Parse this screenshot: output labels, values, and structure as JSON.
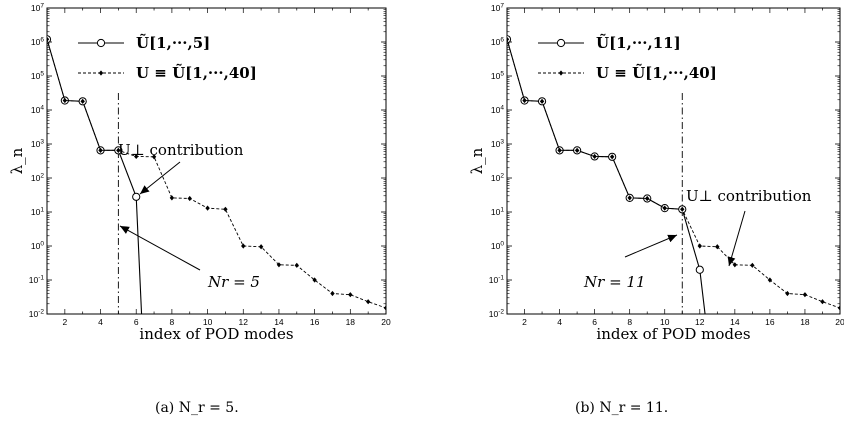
{
  "chart_data": [
    {
      "type": "line",
      "caption": "(a) N_r = 5.",
      "xlabel": "index of POD modes",
      "ylabel": "λ_n",
      "xlim": [
        1,
        20
      ],
      "ylim_log10": [
        -2,
        7
      ],
      "yscale": "log",
      "x_ticks": [
        "2",
        "4",
        "6",
        "8",
        "10",
        "12",
        "14",
        "16",
        "18",
        "20"
      ],
      "y_ticks": [
        "10-2",
        "10-1",
        "100",
        "101",
        "102",
        "103",
        "104",
        "105",
        "106",
        "107"
      ],
      "legend": [
        "Ũ[1,···,5]",
        "U ≡ Ũ[1,···,40]"
      ],
      "legend_placement": "top-right",
      "nr": 5,
      "series": [
        {
          "name": "Ũ[1,···,5]",
          "style": "solid-circle",
          "x": [
            1,
            2,
            3,
            4,
            5,
            6,
            6.3
          ],
          "y": [
            1200000,
            19000,
            18000,
            650,
            650,
            28,
            0.01
          ]
        },
        {
          "name": "U ≡ Ũ[1,···,40]",
          "style": "dashed-diamond",
          "x": [
            1,
            2,
            3,
            4,
            5,
            6,
            7,
            8,
            9,
            10,
            11,
            12,
            13,
            14,
            15,
            16,
            17,
            18,
            19,
            20
          ],
          "y": [
            1200000,
            19000,
            18000,
            650,
            650,
            430,
            420,
            26,
            25,
            13,
            12,
            1.0,
            0.95,
            0.28,
            0.27,
            0.1,
            0.04,
            0.037,
            0.023,
            0.015
          ]
        }
      ],
      "annotations": {
        "contribution": "U⊥ contribution",
        "nr_label": "Nr = 5"
      }
    },
    {
      "type": "line",
      "caption": "(b) N_r = 11.",
      "xlabel": "index of POD modes",
      "ylabel": "λ_n",
      "xlim": [
        1,
        20
      ],
      "ylim_log10": [
        -2,
        7
      ],
      "yscale": "log",
      "x_ticks": [
        "2",
        "4",
        "6",
        "8",
        "10",
        "12",
        "14",
        "16",
        "18",
        "20"
      ],
      "y_ticks": [
        "10-2",
        "10-1",
        "100",
        "101",
        "102",
        "103",
        "104",
        "105",
        "106",
        "107"
      ],
      "legend": [
        "Ũ[1,···,11]",
        "U ≡ Ũ[1,···,40]"
      ],
      "legend_placement": "top-right",
      "nr": 11,
      "series": [
        {
          "name": "Ũ[1,···,11]",
          "style": "solid-circle",
          "x": [
            1,
            2,
            3,
            4,
            5,
            6,
            7,
            8,
            9,
            10,
            11,
            12,
            12.3
          ],
          "y": [
            1200000,
            19000,
            18000,
            650,
            650,
            430,
            420,
            26,
            25,
            13,
            12,
            0.2,
            0.01
          ]
        },
        {
          "name": "U ≡ Ũ[1,···,40]",
          "style": "dashed-diamond",
          "x": [
            1,
            2,
            3,
            4,
            5,
            6,
            7,
            8,
            9,
            10,
            11,
            12,
            13,
            14,
            15,
            16,
            17,
            18,
            19,
            20
          ],
          "y": [
            1200000,
            19000,
            18000,
            650,
            650,
            430,
            420,
            26,
            25,
            13,
            12,
            1.0,
            0.95,
            0.28,
            0.27,
            0.1,
            0.04,
            0.037,
            0.023,
            0.015
          ]
        }
      ],
      "annotations": {
        "contribution": "U⊥ contribution",
        "nr_label": "Nr = 11"
      }
    }
  ]
}
